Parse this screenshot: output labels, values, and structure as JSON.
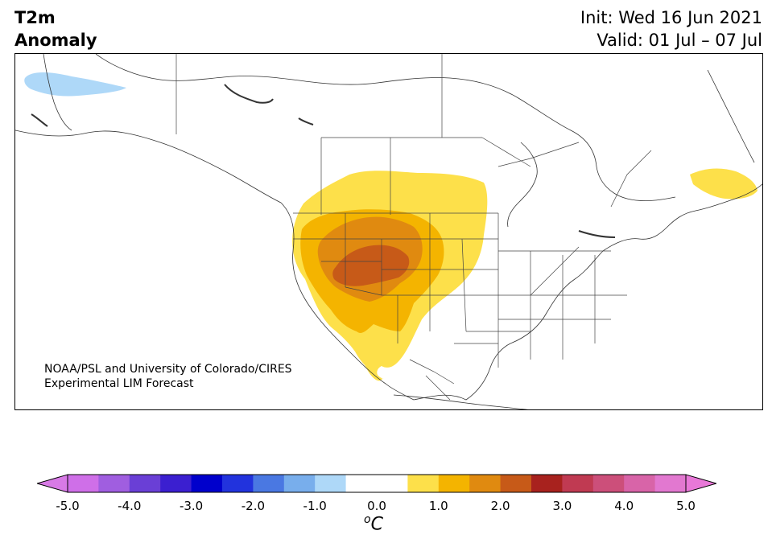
{
  "title": {
    "line1": "T2m",
    "line2": "Anomaly"
  },
  "dates": {
    "init": "Init: Wed 16 Jun 2021",
    "valid": "Valid: 01 Jul – 07 Jul"
  },
  "credit": {
    "line1": "NOAA/PSL and University of Colorado/CIRES",
    "line2": "Experimental LIM Forecast"
  },
  "colorbar": {
    "ticks": [
      "-5.0",
      "-4.0",
      "-3.0",
      "-2.0",
      "-1.0",
      "0.0",
      "1.0",
      "2.0",
      "3.0",
      "4.0",
      "5.0"
    ],
    "unit_sup": "o",
    "unit_main": "C",
    "colors": [
      "#cf6fe8",
      "#a05ee0",
      "#6a3fd6",
      "#3b1fd0",
      "#0000cc",
      "#2233dd",
      "#4a78e2",
      "#78aeec",
      "#aed8f8",
      "#ffffff",
      "#ffffff",
      "#fde04a",
      "#f4b400",
      "#e08a10",
      "#c75a18",
      "#a8221e",
      "#c03a52",
      "#cc4f7a",
      "#d864a8",
      "#e278d0"
    ],
    "low_extend": "#d87ae6",
    "high_extend": "#e878d8"
  },
  "anomaly_colors": {
    "level1": "#fde04a",
    "level2": "#f4b400",
    "level3": "#e08a10",
    "level4": "#c75a18",
    "cold1": "#aed8f8"
  }
}
